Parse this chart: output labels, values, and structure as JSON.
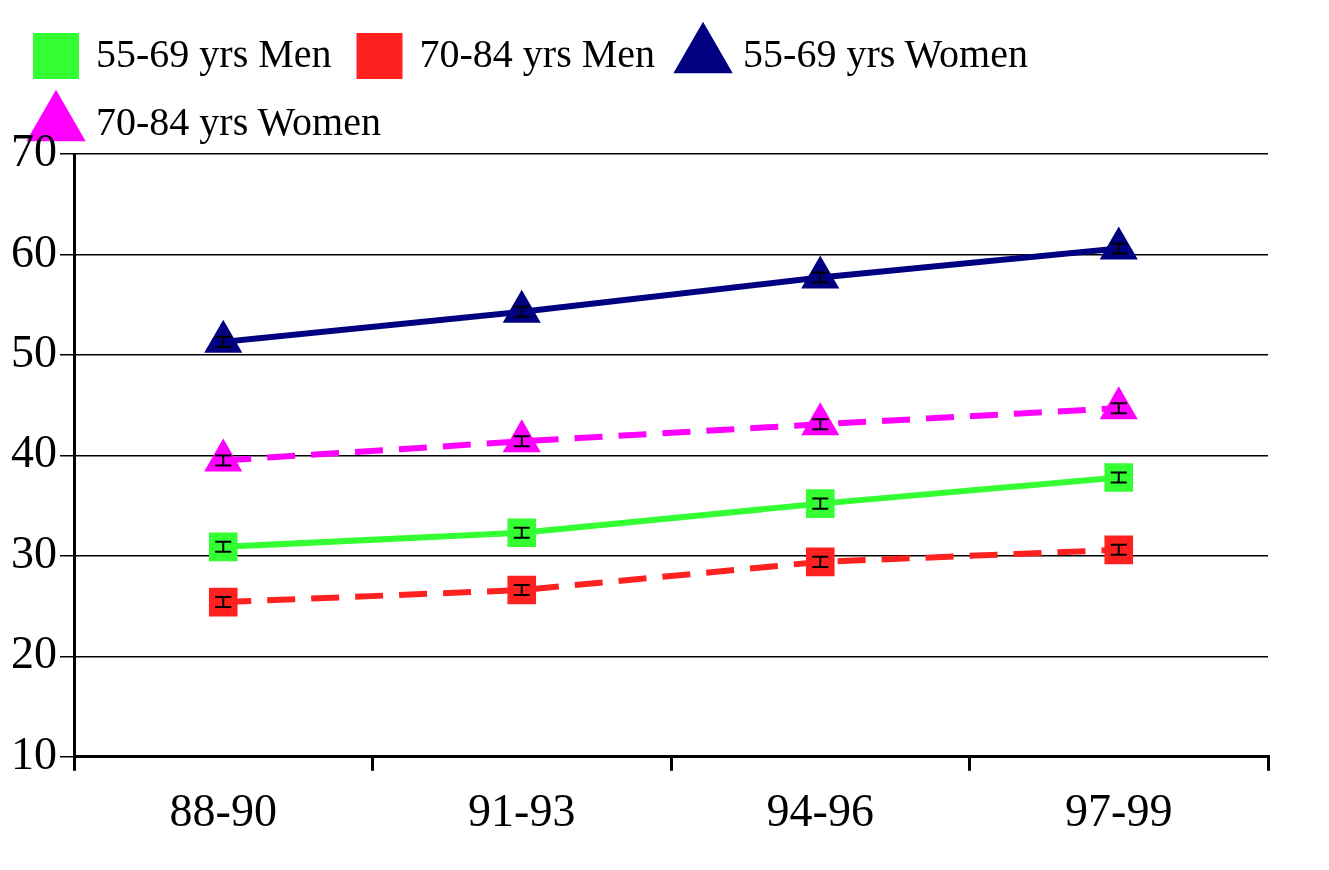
{
  "chart_data": {
    "type": "line",
    "categories": [
      "88-90",
      "91-93",
      "94-96",
      "97-99"
    ],
    "series": [
      {
        "name": "55-69 yrs Men",
        "color": "#33ff33",
        "marker": "square",
        "line_style": "solid",
        "values": [
          30.9,
          32.3,
          35.2,
          37.8
        ],
        "errors": [
          0.5,
          0.5,
          0.5,
          0.5
        ]
      },
      {
        "name": "70-84 yrs Men",
        "color": "#ff2020",
        "marker": "square",
        "line_style": "dashed",
        "values": [
          25.4,
          26.6,
          29.4,
          30.6
        ],
        "errors": [
          0.5,
          0.5,
          0.5,
          0.5
        ]
      },
      {
        "name": "55-69 yrs Women",
        "color": "#000080",
        "marker": "triangle",
        "line_style": "solid",
        "values": [
          51.3,
          54.3,
          57.7,
          60.6
        ],
        "errors": [
          0.5,
          0.5,
          0.5,
          0.5
        ]
      },
      {
        "name": "70-84 yrs Women",
        "color": "#ff00ff",
        "marker": "triangle",
        "line_style": "dashed",
        "values": [
          39.5,
          41.4,
          43.1,
          44.7
        ],
        "errors": [
          0.5,
          0.5,
          0.5,
          0.5
        ]
      }
    ],
    "ylim": [
      10,
      70
    ],
    "yticks": [
      10,
      20,
      30,
      40,
      50,
      60,
      70
    ],
    "grid": "y",
    "legend": "top"
  }
}
